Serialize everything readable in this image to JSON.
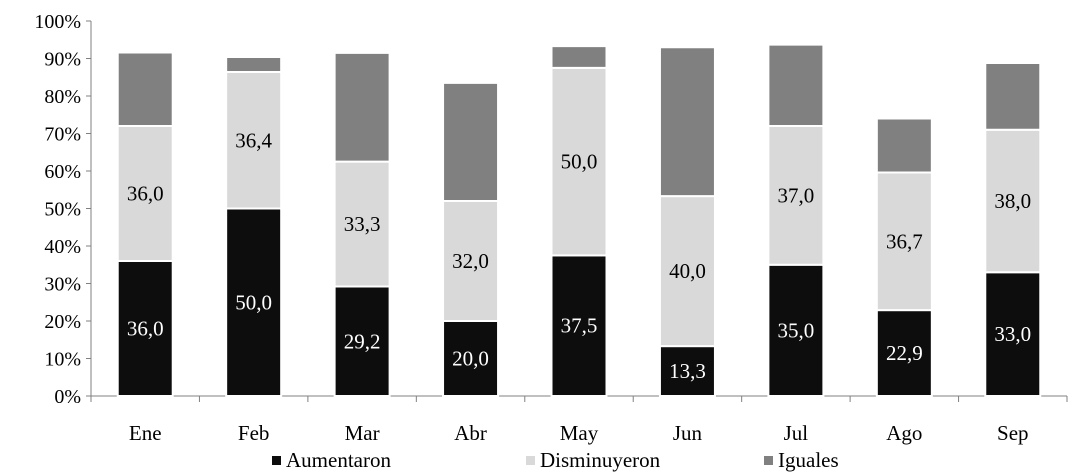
{
  "chart_data": {
    "type": "bar",
    "stacked": true,
    "categories": [
      "Ene",
      "Feb",
      "Mar",
      "Abr",
      "May",
      "Jun",
      "Jul",
      "Ago",
      "Sep"
    ],
    "series": [
      {
        "name": "Aumentaron",
        "color": "#0d0d0d",
        "label_color": "#ffffff",
        "values": [
          36.0,
          50.0,
          29.2,
          20.0,
          37.5,
          13.3,
          35.0,
          22.9,
          33.0
        ],
        "labels": [
          "36,0",
          "50,0",
          "29,2",
          "20,0",
          "37,5",
          "13,3",
          "35,0",
          "22,9",
          "33,0"
        ]
      },
      {
        "name": "Disminuyeron",
        "color": "#d9d9d9",
        "label_color": "#000000",
        "values": [
          36.0,
          36.4,
          33.3,
          32.0,
          50.0,
          40.0,
          37.0,
          36.7,
          38.0
        ],
        "labels": [
          "36,0",
          "36,4",
          "33,3",
          "32,0",
          "50,0",
          "40,0",
          "37,0",
          "36,7",
          "38,0"
        ]
      },
      {
        "name": "Iguales",
        "color": "#808080",
        "values": [
          19.6,
          4.0,
          29.0,
          31.5,
          5.8,
          39.7,
          21.7,
          14.4,
          17.8
        ]
      }
    ],
    "ylim": [
      0,
      100
    ],
    "yticks": [
      "0%",
      "10%",
      "20%",
      "30%",
      "40%",
      "50%",
      "60%",
      "70%",
      "80%",
      "90%",
      "100%"
    ],
    "grid": false,
    "legend": "bottom"
  }
}
